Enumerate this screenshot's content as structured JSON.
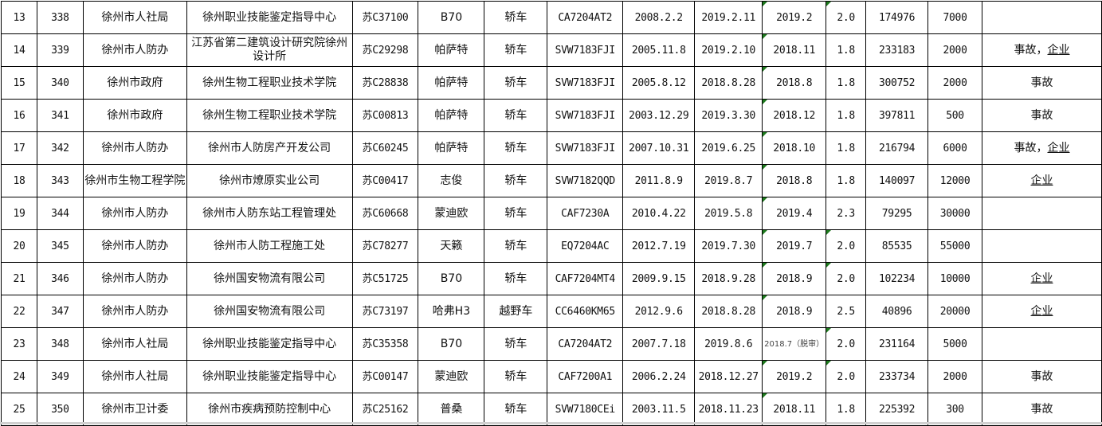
{
  "rows": [
    [
      "13",
      "338",
      "徐州市人社局",
      "徐州职业技能鉴定指导中心",
      "苏C37100",
      "B70",
      "轿车",
      "CA7204AT2",
      "2008.2.2",
      "2019.2.11",
      "2019.2",
      "2.0",
      "174976",
      "7000",
      ""
    ],
    [
      "14",
      "339",
      "徐州市人防办",
      "江苏省第二建筑设计研究院徐州设计所",
      "苏C29298",
      "帕萨特",
      "轿车",
      "SVW7183FJI",
      "2005.11.8",
      "2019.2.10",
      "2018.11",
      "1.8",
      "233183",
      "2000",
      "事故，企业"
    ],
    [
      "15",
      "340",
      "徐州市政府",
      "徐州生物工程职业技术学院",
      "苏C28838",
      "帕萨特",
      "轿车",
      "SVW7183FJI",
      "2005.8.12",
      "2018.8.28",
      "2018.8",
      "1.8",
      "300752",
      "2000",
      "事故"
    ],
    [
      "16",
      "341",
      "徐州市政府",
      "徐州生物工程职业技术学院",
      "苏C00813",
      "帕萨特",
      "轿车",
      "SVW7183FJI",
      "2003.12.29",
      "2019.3.30",
      "2018.12",
      "1.8",
      "397811",
      "500",
      "事故"
    ],
    [
      "17",
      "342",
      "徐州市人防办",
      "徐州市人防房产开发公司",
      "苏C60245",
      "帕萨特",
      "轿车",
      "SVW7183FJI",
      "2007.10.31",
      "2019.6.25",
      "2018.10",
      "1.8",
      "216794",
      "6000",
      "事故，企业"
    ],
    [
      "18",
      "343",
      "徐州市生物工程学院",
      "徐州市燎原实业公司",
      "苏C00417",
      "志俊",
      "轿车",
      "SVW7182QQD",
      "2011.8.9",
      "2019.8.7",
      "2018.8",
      "1.8",
      "140097",
      "12000",
      "企业"
    ],
    [
      "19",
      "344",
      "徐州市人防办",
      "徐州市人防东站工程管理处",
      "苏C60668",
      "蒙迪欧",
      "轿车",
      "CAF7230A",
      "2010.4.22",
      "2019.5.8",
      "2019.4",
      "2.3",
      "79295",
      "30000",
      ""
    ],
    [
      "20",
      "345",
      "徐州市人防办",
      "徐州市人防工程施工处",
      "苏C78277",
      "天籁",
      "轿车",
      "EQ7204AC",
      "2012.7.19",
      "2019.7.30",
      "2019.7",
      "2.0",
      "85535",
      "55000",
      ""
    ],
    [
      "21",
      "346",
      "徐州市人防办",
      "徐州国安物流有限公司",
      "苏C51725",
      "B70",
      "轿车",
      "CAF7204MT4",
      "2009.9.15",
      "2018.9.28",
      "2018.9",
      "2.0",
      "102234",
      "10000",
      "企业"
    ],
    [
      "22",
      "347",
      "徐州市人防办",
      "徐州国安物流有限公司",
      "苏C73197",
      "哈弗H3",
      "越野车",
      "CC6460KM65",
      "2012.9.6",
      "2018.8.28",
      "2018.9",
      "2.5",
      "40896",
      "20000",
      "企业"
    ],
    [
      "23",
      "348",
      "徐州市人社局",
      "徐州职业技能鉴定指导中心",
      "苏C35358",
      "B70",
      "轿车",
      "CA7204AT2",
      "2007.7.18",
      "2019.8.6",
      "2018.7（脱审）",
      "2.0",
      "231164",
      "5000",
      ""
    ],
    [
      "24",
      "349",
      "徐州市人社局",
      "徐州职业技能鉴定指导中心",
      "苏C00147",
      "蒙迪欧",
      "轿车",
      "CAF7200A1",
      "2006.2.24",
      "2018.12.27",
      "2019.2",
      "2.0",
      "233734",
      "2000",
      "事故"
    ],
    [
      "25",
      "350",
      "徐州市卫计委",
      "徐州市疾病预防控制中心",
      "苏C25162",
      "普桑",
      "轿车",
      "SVW7180CEi",
      "2003.11.5",
      "2018.11.23",
      "2018.11",
      "1.8",
      "225392",
      "300",
      "事故"
    ]
  ],
  "indicator_color": "#1e7a1e"
}
